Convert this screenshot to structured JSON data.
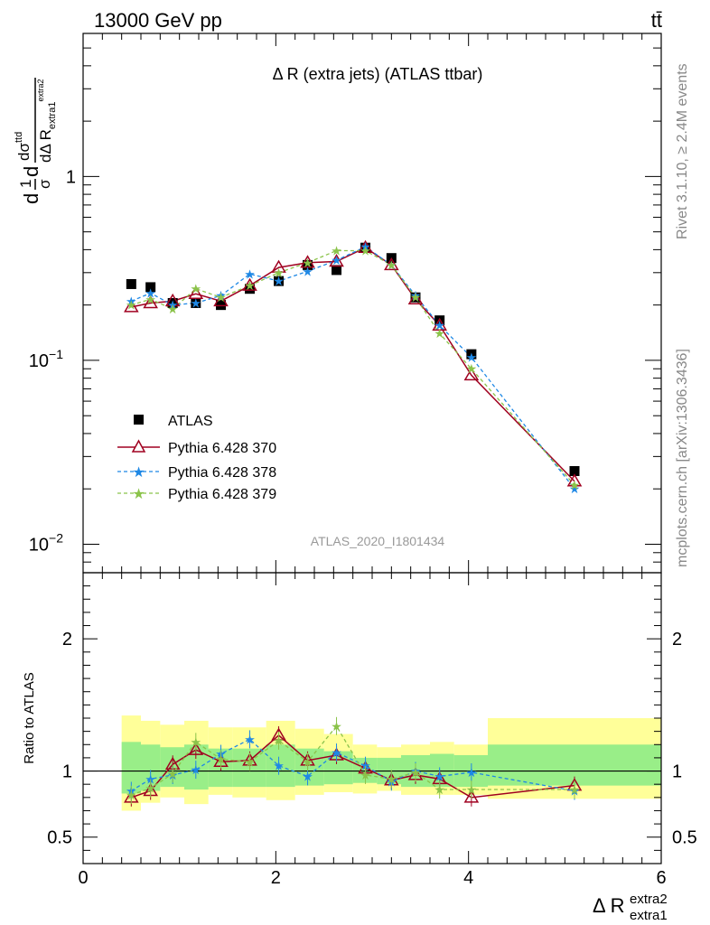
{
  "header": {
    "left": "13000 GeV pp",
    "right": "tt̄"
  },
  "side_labels": {
    "rivet": "Rivet 3.1.10, ≥ 2.4M events",
    "mcplots": "mcplots.cern.ch [arXiv:1306.3436]"
  },
  "chart_data": [
    {
      "type": "scatter",
      "panel": "main",
      "title": "Δ R (extra jets) (ATLAS ttbar)",
      "watermark": "ATLAS_2020_I1801434",
      "ylabel": "dσ/dΔR (extra1, extra2) normalized",
      "ylabel_parts": {
        "lead": "d",
        "num": "1",
        "den": "σ",
        "inner_num": "dσ",
        "sup": "ttd",
        "inner_den": "dΔ R",
        "sub": "extra1",
        "sub_sup": "extra2"
      },
      "yscale": "log",
      "ylim": [
        0.007,
        6
      ],
      "xlim": [
        0,
        6
      ],
      "y_ticks": [
        {
          "value": 1,
          "label": "1"
        },
        {
          "value": 0.1,
          "base": "10",
          "exp": "−1"
        },
        {
          "value": 0.01,
          "base": "10",
          "exp": "−2"
        }
      ],
      "legend_position": "middle-left",
      "x": [
        0.5,
        0.7,
        0.93,
        1.17,
        1.43,
        1.73,
        2.03,
        2.33,
        2.63,
        2.93,
        3.2,
        3.45,
        3.7,
        4.03,
        5.1
      ],
      "series": [
        {
          "name": "ATLAS",
          "style": "square",
          "color": "#000000",
          "values": [
            0.26,
            0.25,
            0.205,
            0.205,
            0.2,
            0.245,
            0.27,
            0.33,
            0.31,
            0.41,
            0.36,
            0.22,
            0.165,
            0.108,
            0.025
          ]
        },
        {
          "name": "Pythia 6.428 370",
          "style": "triangle-solid",
          "color": "#a00020",
          "values": [
            0.195,
            0.205,
            0.21,
            0.23,
            0.21,
            0.255,
            0.32,
            0.34,
            0.345,
            0.41,
            0.33,
            0.215,
            0.155,
            0.083,
            0.022
          ]
        },
        {
          "name": "Pythia 6.428 378",
          "style": "star-dashed",
          "color": "#1e88e5",
          "values": [
            0.21,
            0.232,
            0.2,
            0.205,
            0.225,
            0.295,
            0.27,
            0.305,
            0.35,
            0.415,
            0.33,
            0.225,
            0.155,
            0.104,
            0.02
          ]
        },
        {
          "name": "Pythia 6.428 379",
          "style": "star-dashed",
          "color": "#8bc34a",
          "values": [
            0.2,
            0.215,
            0.19,
            0.245,
            0.22,
            0.255,
            0.3,
            0.34,
            0.395,
            0.395,
            0.33,
            0.22,
            0.14,
            0.09,
            0.021
          ]
        }
      ]
    },
    {
      "type": "scatter",
      "panel": "ratio",
      "ylabel": "Ratio to ATLAS",
      "xlabel": "Δ R",
      "xlabel_sub": "extra1",
      "xlabel_sup": "extra2",
      "ylim": [
        0.3,
        2.5
      ],
      "xlim": [
        0,
        6
      ],
      "x_ticks": [
        "0",
        "2",
        "4",
        "6"
      ],
      "y_ticks": [
        "0.5",
        "1",
        "2"
      ],
      "band_edges": [
        0.4,
        0.6,
        0.8,
        1.05,
        1.3,
        1.55,
        1.9,
        2.2,
        2.5,
        2.8,
        3.05,
        3.3,
        3.6,
        3.85,
        4.2,
        6.0
      ],
      "band_green": [
        [
          0.83,
          1.22
        ],
        [
          0.85,
          1.2
        ],
        [
          0.88,
          1.18
        ],
        [
          0.86,
          1.2
        ],
        [
          0.88,
          1.17
        ],
        [
          0.88,
          1.17
        ],
        [
          0.88,
          1.2
        ],
        [
          0.89,
          1.17
        ],
        [
          0.9,
          1.15
        ],
        [
          0.91,
          1.1
        ],
        [
          0.9,
          1.1
        ],
        [
          0.88,
          1.12
        ],
        [
          0.88,
          1.13
        ],
        [
          0.88,
          1.12
        ],
        [
          0.89,
          1.2
        ]
      ],
      "band_yellow": [
        [
          0.7,
          1.42
        ],
        [
          0.76,
          1.38
        ],
        [
          0.8,
          1.35
        ],
        [
          0.75,
          1.38
        ],
        [
          0.82,
          1.33
        ],
        [
          0.8,
          1.33
        ],
        [
          0.78,
          1.38
        ],
        [
          0.82,
          1.32
        ],
        [
          0.84,
          1.28
        ],
        [
          0.83,
          1.2
        ],
        [
          0.85,
          1.18
        ],
        [
          0.82,
          1.2
        ],
        [
          0.82,
          1.22
        ],
        [
          0.82,
          1.2
        ],
        [
          0.79,
          1.4
        ]
      ],
      "x": [
        0.5,
        0.7,
        0.93,
        1.17,
        1.43,
        1.73,
        2.03,
        2.33,
        2.63,
        2.93,
        3.2,
        3.45,
        3.7,
        4.03,
        5.1
      ],
      "series": [
        {
          "name": "Pythia 6.428 370",
          "color": "#a00020",
          "values": [
            0.8,
            0.85,
            1.05,
            1.16,
            1.07,
            1.08,
            1.27,
            1.08,
            1.12,
            1.02,
            0.93,
            0.97,
            0.94,
            0.8,
            0.89
          ]
        },
        {
          "name": "Pythia 6.428 378",
          "color": "#1e88e5",
          "values": [
            0.85,
            0.94,
            0.97,
            1.01,
            1.13,
            1.24,
            1.04,
            0.96,
            1.14,
            1.04,
            0.92,
            1.0,
            0.96,
            0.99,
            0.85
          ]
        },
        {
          "name": "Pythia 6.428 379",
          "color": "#8bc34a",
          "values": [
            0.82,
            0.87,
            0.98,
            1.22,
            1.09,
            1.07,
            1.23,
            1.07,
            1.34,
            0.97,
            0.94,
            0.99,
            0.86,
            0.86,
            0.86
          ]
        }
      ]
    }
  ]
}
